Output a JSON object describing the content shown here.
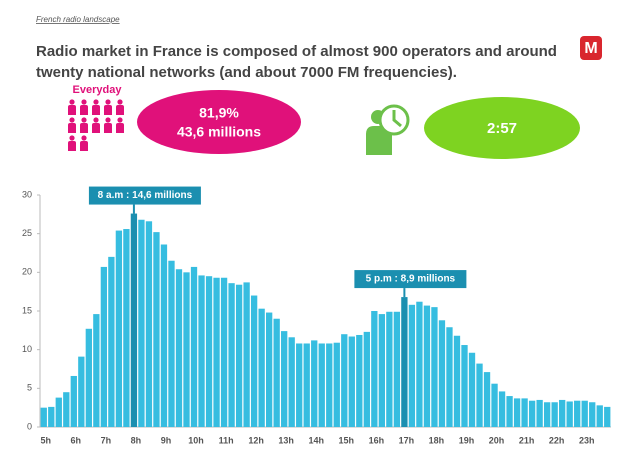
{
  "header": {
    "section": "French radio landscape",
    "title": [
      "Radio market in France is composed of almost 900 operators and around",
      "twenty national networks (and about 7000 FM frequencies)."
    ],
    "logo": "M"
  },
  "kpis": {
    "everyday_label": "Everyday",
    "reach": "81,9%",
    "reach_people": "43,6 millions",
    "duration": "2:57"
  },
  "chart_data": {
    "type": "bar",
    "color": "#36bde0",
    "highlight_color": "#1b8fb0",
    "categories": [
      "5h",
      null,
      null,
      null,
      "6h",
      null,
      null,
      null,
      "7h",
      null,
      null,
      null,
      "8h",
      null,
      null,
      null,
      "9h",
      null,
      null,
      null,
      "10h",
      null,
      null,
      null,
      "11h",
      null,
      null,
      null,
      "12h",
      null,
      null,
      null,
      "13h",
      null,
      null,
      null,
      "14h",
      null,
      null,
      null,
      "15h",
      null,
      null,
      null,
      "16h",
      null,
      null,
      null,
      "17h",
      null,
      null,
      null,
      "18h",
      null,
      null,
      null,
      "19h",
      null,
      null,
      null,
      "20h",
      null,
      null,
      null,
      "21h",
      null,
      null,
      null,
      "22h",
      null,
      null,
      null,
      "23h",
      null,
      null,
      null
    ],
    "values": [
      2.5,
      2.6,
      3.8,
      4.5,
      6.6,
      9.1,
      12.7,
      14.6,
      20.7,
      22.0,
      25.4,
      25.6,
      27.6,
      26.8,
      26.6,
      25.2,
      23.6,
      21.5,
      20.4,
      20.0,
      20.7,
      19.6,
      19.5,
      19.3,
      19.3,
      18.6,
      18.4,
      18.7,
      17.0,
      15.3,
      14.8,
      14.0,
      12.4,
      11.6,
      10.8,
      10.8,
      11.2,
      10.8,
      10.8,
      10.9,
      12.0,
      11.7,
      11.9,
      12.3,
      15.0,
      14.6,
      14.9,
      14.9,
      16.8,
      15.8,
      16.2,
      15.7,
      15.5,
      13.8,
      12.9,
      11.8,
      10.6,
      9.6,
      8.2,
      7.1,
      5.6,
      4.6,
      4.0,
      3.7,
      3.7,
      3.4,
      3.5,
      3.2,
      3.2,
      3.5,
      3.3,
      3.4,
      3.4,
      3.2,
      2.8,
      2.6
    ],
    "ylim": [
      0,
      30
    ],
    "yticks": [
      0,
      5,
      10,
      15,
      20,
      25,
      30
    ],
    "annotations": [
      {
        "text": "8 a.m : 14,6 millions",
        "category": "8h"
      },
      {
        "text": "5 p.m : 8,9 millions",
        "category": "17h"
      }
    ]
  }
}
